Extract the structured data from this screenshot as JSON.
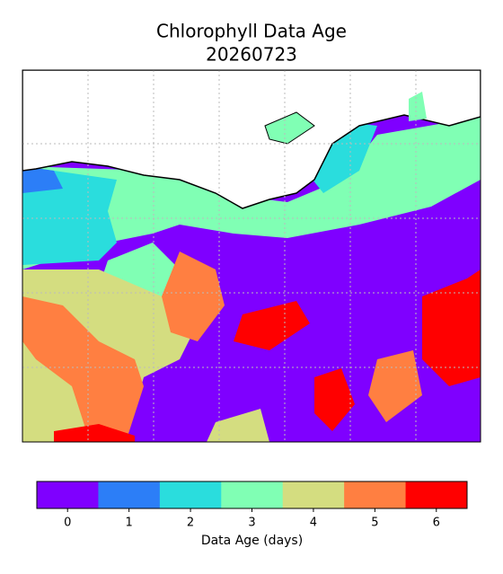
{
  "title": "Chlorophyll Data Age",
  "subtitle": "20260723",
  "colorbar": {
    "ticks": [
      0,
      1,
      2,
      3,
      4,
      5,
      6
    ],
    "colors": [
      "#7f00ff",
      "#2c7ef7",
      "#2adddd",
      "#80ffb4",
      "#d4dd80",
      "#ff7f41",
      "#ff0000"
    ],
    "label": "Data Age (days)"
  }
}
